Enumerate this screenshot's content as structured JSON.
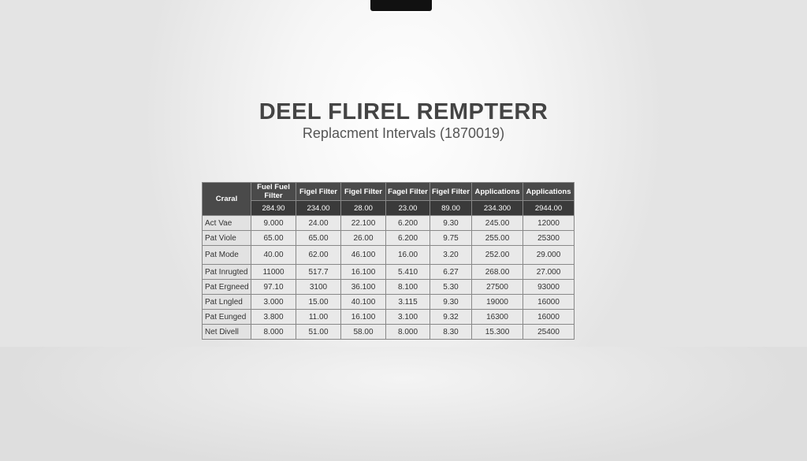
{
  "title": "DEEL FLIREL REMPTERR",
  "subtitle": "Replacment Intervals (1870019)",
  "table": {
    "corner": "Craral",
    "headers": [
      "Fuel Fuel Filter",
      "Figel Filter",
      "Figel Filter",
      "Fagel Filter",
      "Figel Filter",
      "Applications",
      "Applications"
    ],
    "subheaders": [
      "284.90",
      "234.00",
      "28.00",
      "23.00",
      "89.00",
      "234.300",
      "2944.00"
    ],
    "rows": [
      {
        "label": "Act Vae",
        "values": [
          "9.000",
          "24.00",
          "22.100",
          "6.200",
          "9.30",
          "245.00",
          "12000"
        ]
      },
      {
        "label": "Pat Viole",
        "values": [
          "65.00",
          "65.00",
          "26.00",
          "6.200",
          "9.75",
          "255.00",
          "25300"
        ]
      },
      {
        "label": "Pat Mode",
        "values": [
          "40.00",
          "62.00",
          "46.100",
          "16.00",
          "3.20",
          "252.00",
          "29.000"
        ]
      },
      {
        "label": "Pat Inrugted",
        "values": [
          "11000",
          "517.7",
          "16.100",
          "5.410",
          "6.27",
          "268.00",
          "27.000"
        ]
      },
      {
        "label": "Pat Ergneed",
        "values": [
          "97.10",
          "3100",
          "36.100",
          "8.100",
          "5.30",
          "27500",
          "93000"
        ]
      },
      {
        "label": "Pat Lngled",
        "values": [
          "3.000",
          "15.00",
          "40.100",
          "3.115",
          "9.30",
          "19000",
          "16000"
        ]
      },
      {
        "label": "Pat Eunged",
        "values": [
          "3.800",
          "11.00",
          "16.100",
          "3.100",
          "9.32",
          "16300",
          "16000"
        ]
      },
      {
        "label": "Net Divell",
        "values": [
          "8.000",
          "51.00",
          "58.00",
          "8.000",
          "8.30",
          "15.300",
          "25400"
        ]
      }
    ]
  }
}
